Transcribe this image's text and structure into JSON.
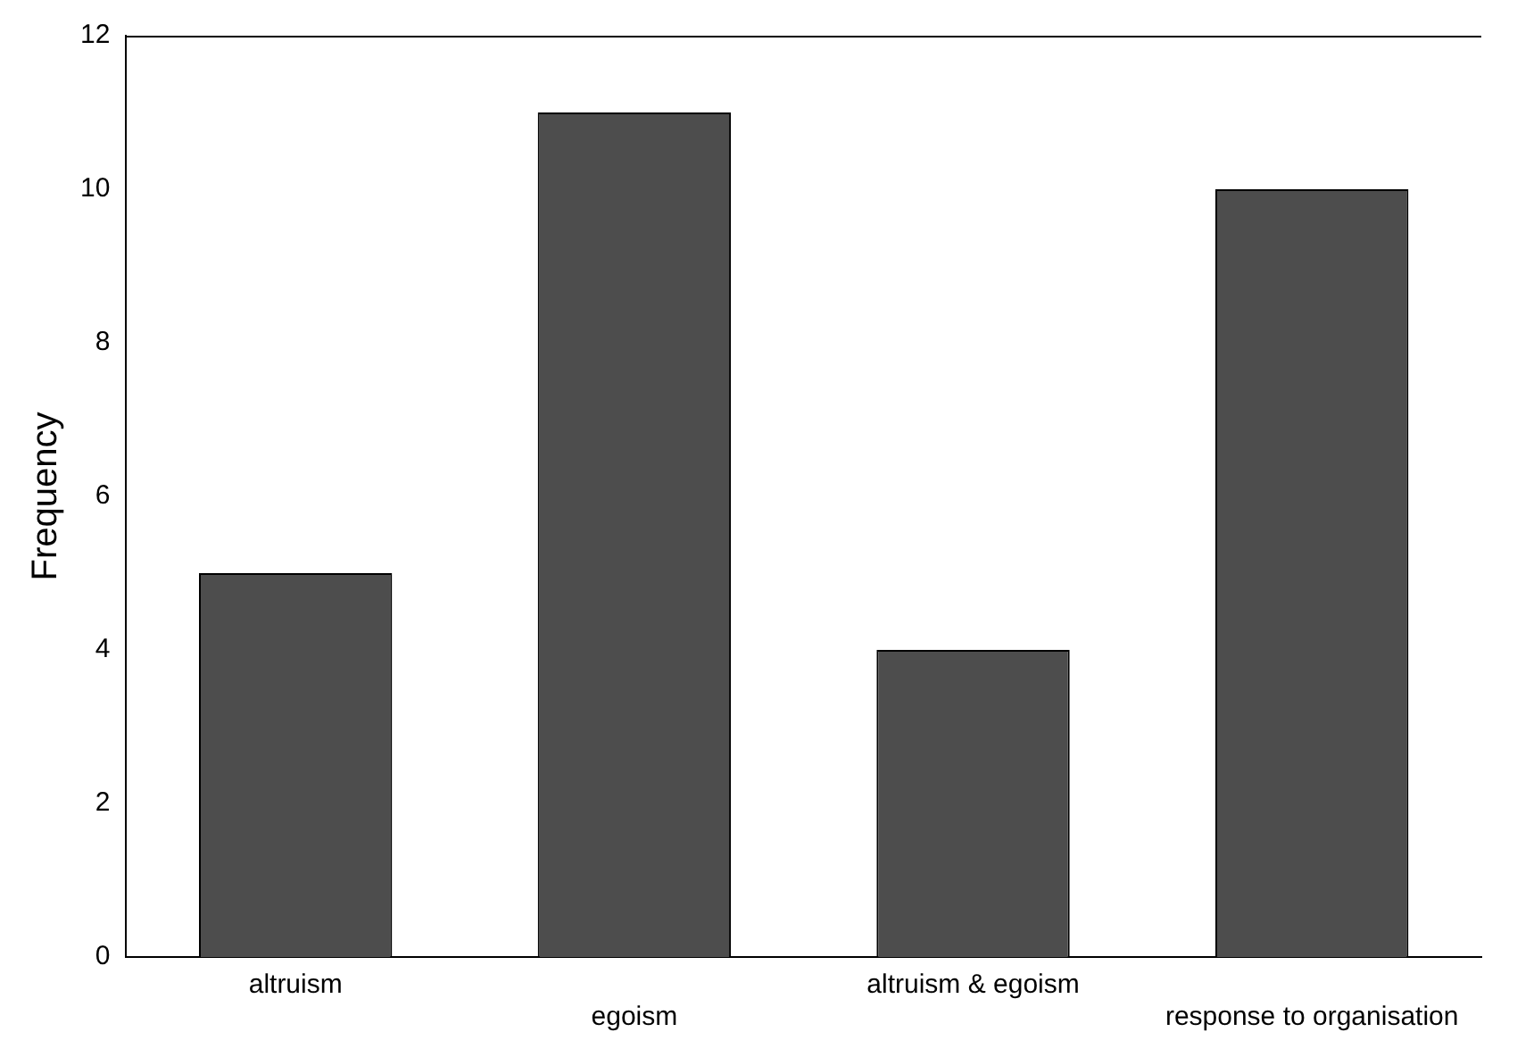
{
  "chart_data": {
    "type": "bar",
    "ylabel": "Frequency",
    "categories": [
      "altruism",
      "egoism",
      "altruism & egoism",
      "response to organisation"
    ],
    "values": [
      5,
      11,
      4,
      10
    ],
    "color": "#4d4d4d",
    "ylim": [
      0,
      12
    ],
    "yticks": [
      0,
      2,
      4,
      6,
      8,
      10,
      12
    ],
    "grid": false,
    "legend": false
  }
}
